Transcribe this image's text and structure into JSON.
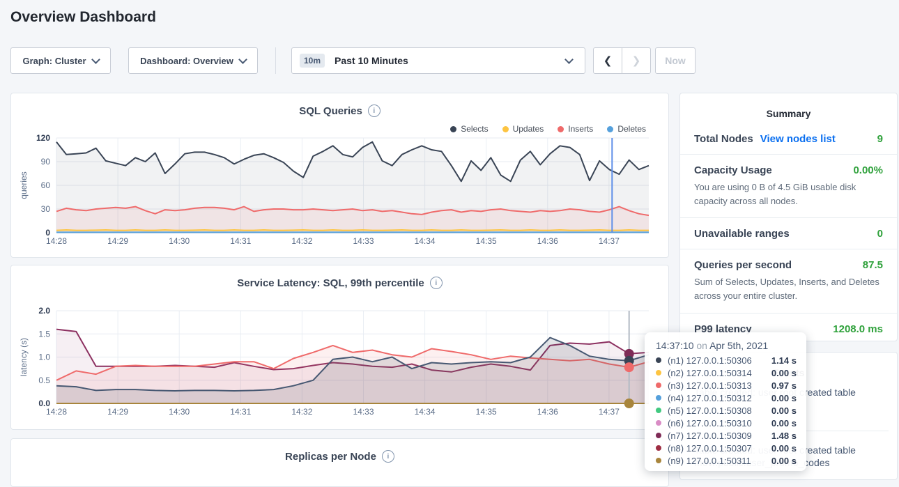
{
  "page": {
    "title": "Overview Dashboard"
  },
  "toolbar": {
    "graph_dropdown": "Graph: Cluster",
    "dashboard_dropdown": "Dashboard: Overview",
    "time_badge": "10m",
    "time_label": "Past 10 Minutes",
    "prev_label": "❮",
    "next_label": "❯",
    "now_button": "Now"
  },
  "colors": {
    "accent_green": "#2fa13b",
    "link_blue": "#0a6ff0",
    "selects_navy": "#394455",
    "updates_yellow": "#fdc441",
    "inserts_red": "#ef6a6a",
    "deletes_blue": "#55a0dc"
  },
  "summary": {
    "heading": "Summary",
    "stats": [
      {
        "label": "Total Nodes",
        "link": "View nodes list",
        "value": "9",
        "sub": ""
      },
      {
        "label": "Capacity Usage",
        "value": "0.00%",
        "sub": "You are using 0 B of 4.5 GiB usable disk capacity across all nodes."
      },
      {
        "label": "Unavailable ranges",
        "value": "0",
        "sub": ""
      },
      {
        "label": "Queries per second",
        "value": "87.5",
        "sub": "Sum of Selects, Updates, Inserts, and Deletes across your entire cluster."
      },
      {
        "label": "P99 latency",
        "value": "1208.0 ms",
        "sub": ""
      }
    ]
  },
  "events": {
    "heading": "Events",
    "items": [
      {
        "line1": "Table created: user root created table",
        "line2": ""
      },
      {
        "line1": "Table created: user root created table",
        "line2": "movr.public.user_promo_codes"
      }
    ]
  },
  "tooltip": {
    "time": "14:37:10",
    "on": "on",
    "date": "Apr 5th, 2021",
    "rows": [
      {
        "color": "#394455",
        "label": "(n1) 127.0.0.1:50306",
        "value": "1.14 s"
      },
      {
        "color": "#fdc441",
        "label": "(n2) 127.0.0.1:50314",
        "value": "0.00 s"
      },
      {
        "color": "#ef6a6a",
        "label": "(n3) 127.0.0.1:50313",
        "value": "0.97 s"
      },
      {
        "color": "#55a0dc",
        "label": "(n4) 127.0.0.1:50312",
        "value": "0.00 s"
      },
      {
        "color": "#41c980",
        "label": "(n5) 127.0.0.1:50308",
        "value": "0.00 s"
      },
      {
        "color": "#d98cc5",
        "label": "(n6) 127.0.0.1:50310",
        "value": "0.00 s"
      },
      {
        "color": "#7e2b56",
        "label": "(n7) 127.0.0.1:50309",
        "value": "1.48 s"
      },
      {
        "color": "#9e2d43",
        "label": "(n8) 127.0.0.1:50307",
        "value": "0.00 s"
      },
      {
        "color": "#a8853c",
        "label": "(n9) 127.0.0.1:50311",
        "value": "0.00 s"
      }
    ]
  },
  "chart_data": [
    {
      "type": "line",
      "title": "SQL Queries",
      "ylabel": "queries",
      "ylim": [
        0,
        120
      ],
      "yticks": [
        0,
        30,
        60,
        90,
        120
      ],
      "ytick_labels": [
        "0",
        "30",
        "60",
        "90",
        "120"
      ],
      "x_ticks": [
        "14:28",
        "14:29",
        "14:30",
        "14:31",
        "14:32",
        "14:33",
        "14:34",
        "14:35",
        "14:36",
        "14:37"
      ],
      "legend": [
        {
          "name": "Selects",
          "color": "#394455"
        },
        {
          "name": "Updates",
          "color": "#fdc441"
        },
        {
          "name": "Inserts",
          "color": "#ef6a6a"
        },
        {
          "name": "Deletes",
          "color": "#55a0dc"
        }
      ],
      "crosshair": {
        "x_frac": 0.938,
        "color": "#5f8fe8"
      },
      "series": [
        {
          "name": "Selects",
          "color": "#394455",
          "fill": "rgba(57,68,85,0.07)",
          "values": [
            115,
            99,
            100,
            101,
            107,
            91,
            88,
            85,
            95,
            90,
            101,
            75,
            87,
            100,
            102,
            102,
            99,
            95,
            87,
            93,
            98,
            100,
            95,
            89,
            78,
            70,
            97,
            103,
            110,
            99,
            96,
            108,
            115,
            91,
            85,
            99,
            105,
            110,
            105,
            103,
            85,
            65,
            91,
            79,
            95,
            73,
            65,
            92,
            103,
            86,
            100,
            110,
            108,
            99,
            66,
            91,
            80,
            74,
            92,
            80,
            85
          ]
        },
        {
          "name": "Inserts",
          "color": "#ef6a6a",
          "fill": "rgba(239,106,106,0.10)",
          "values": [
            27,
            31,
            29,
            28,
            30,
            31,
            32,
            31,
            33,
            28,
            24,
            29,
            28,
            29,
            31,
            32,
            32,
            31,
            29,
            33,
            27,
            29,
            30,
            30,
            29,
            29,
            30,
            29,
            28,
            29,
            30,
            28,
            29,
            27,
            28,
            26,
            24,
            23,
            26,
            28,
            29,
            26,
            28,
            27,
            29,
            30,
            28,
            27,
            26,
            28,
            27,
            28,
            30,
            29,
            27,
            26,
            29,
            33,
            28,
            24,
            22
          ]
        },
        {
          "name": "Updates",
          "color": "#fdc441",
          "fill": "rgba(253,196,65,0.15)",
          "values": [
            3,
            3.5,
            3,
            3,
            3.2,
            3.5,
            3,
            3,
            3.5,
            3,
            3,
            3.5,
            3,
            3,
            3.2,
            3.5,
            3,
            3,
            3.5,
            3,
            3,
            3.5,
            3,
            3,
            3.2,
            3.5,
            3,
            3,
            3.5,
            3,
            3,
            3.5,
            3,
            3,
            3.2,
            3.5,
            3,
            3,
            3.5,
            3,
            3,
            3.5,
            3,
            3,
            3.2,
            3.5,
            3,
            3,
            3.5,
            3,
            3,
            3.5,
            3,
            3,
            3.2,
            3.5,
            3,
            3,
            3.5,
            3,
            3
          ]
        },
        {
          "name": "Deletes",
          "color": "#55a0dc",
          "fill": null,
          "values": [
            0.5,
            0.5,
            0.5,
            0.5,
            0.5,
            0.5,
            0.5,
            0.5,
            0.5,
            0.5,
            0.5,
            0.5,
            0.5,
            0.5,
            0.5,
            0.5,
            0.5,
            0.5,
            0.5,
            0.5,
            0.5,
            0.5,
            0.5,
            0.5,
            0.5,
            0.5,
            0.5,
            0.5,
            0.5,
            0.5,
            0.5,
            0.5,
            0.5,
            0.5,
            0.5,
            0.5,
            0.5,
            0.5,
            0.5,
            0.5,
            0.5,
            0.5,
            0.5,
            0.5,
            0.5,
            0.5,
            0.5,
            0.5,
            0.5,
            0.5,
            0.5,
            0.5,
            0.5,
            0.5,
            0.5,
            0.5,
            0.5,
            0.5,
            0.5,
            0.5,
            0.5
          ]
        }
      ]
    },
    {
      "type": "line",
      "title": "Service Latency: SQL, 99th percentile",
      "ylabel": "latency (s)",
      "ylim": [
        0,
        2
      ],
      "yticks": [
        0,
        0.5,
        1,
        1.5,
        2
      ],
      "ytick_labels": [
        "0.0",
        "0.5",
        "1.0",
        "1.5",
        "2.0"
      ],
      "x_ticks": [
        "14:28",
        "14:29",
        "14:30",
        "14:31",
        "14:32",
        "14:33",
        "14:34",
        "14:35",
        "14:36",
        "14:37"
      ],
      "crosshair": {
        "x_frac": 0.9667,
        "color": "#b3bac4",
        "dots": [
          {
            "color": "#7e2b56",
            "value": 1.07
          },
          {
            "color": "#394455",
            "value": 0.92
          },
          {
            "color": "#ef6a6a",
            "value": 0.78
          },
          {
            "color": "#a8853c",
            "value": 0
          }
        ]
      },
      "series": [
        {
          "name": "(n7) 127.0.0.1:50309",
          "color": "#8c3060",
          "fill": "rgba(140,48,96,0.08)",
          "values": [
            1.6,
            1.55,
            0.8,
            0.8,
            0.8,
            0.8,
            0.82,
            0.8,
            0.78,
            0.88,
            0.8,
            0.73,
            0.75,
            0.82,
            0.88,
            0.85,
            0.8,
            0.78,
            0.85,
            0.72,
            0.68,
            0.78,
            0.85,
            0.8,
            0.72,
            1.25,
            1.3,
            1.28,
            1.33,
            1.07,
            1.1
          ]
        },
        {
          "name": "(n3) 127.0.0.1:50313",
          "color": "#ef6a6a",
          "fill": "rgba(239,106,106,0.10)",
          "values": [
            0.5,
            0.7,
            0.63,
            0.8,
            0.82,
            0.8,
            0.8,
            0.8,
            0.85,
            0.9,
            0.9,
            0.75,
            0.97,
            1.1,
            1.25,
            1.1,
            1.15,
            1.05,
            1.0,
            1.18,
            1.12,
            1.05,
            0.95,
            1.02,
            0.98,
            0.95,
            0.92,
            0.95,
            0.85,
            0.78,
            0.9
          ]
        },
        {
          "name": "(n1) 127.0.0.1:50306",
          "color": "#475872",
          "fill": "rgba(57,68,85,0.14)",
          "values": [
            0.38,
            0.36,
            0.28,
            0.3,
            0.3,
            0.28,
            0.27,
            0.28,
            0.28,
            0.27,
            0.28,
            0.3,
            0.38,
            0.5,
            0.95,
            1.0,
            0.9,
            1.0,
            0.75,
            0.88,
            0.85,
            0.88,
            0.9,
            0.88,
            1.0,
            1.42,
            1.25,
            1.02,
            0.95,
            0.92,
            1.05
          ]
        },
        {
          "name": "(n9) 127.0.0.1:50311",
          "color": "#a8853c",
          "fill": null,
          "values": [
            0,
            0,
            0,
            0,
            0,
            0,
            0,
            0,
            0,
            0,
            0,
            0,
            0,
            0,
            0,
            0,
            0,
            0,
            0,
            0,
            0,
            0,
            0,
            0,
            0,
            0,
            0,
            0,
            0,
            0,
            0
          ]
        }
      ]
    },
    {
      "type": "line",
      "title": "Replicas per Node",
      "series": []
    }
  ]
}
